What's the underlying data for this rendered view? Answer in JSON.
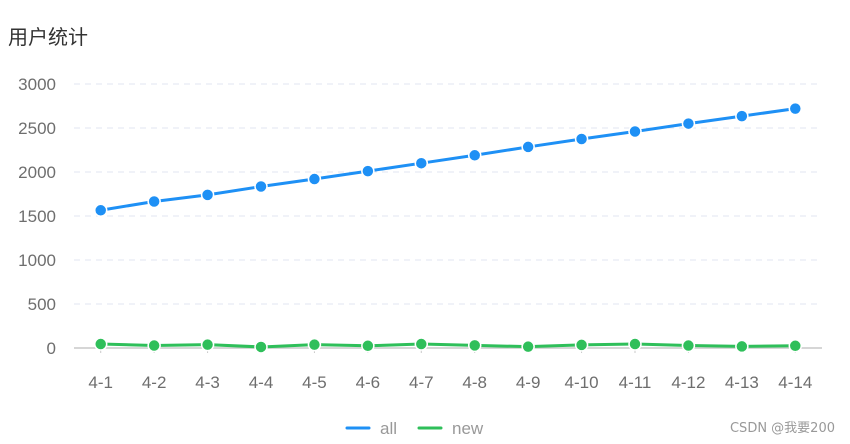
{
  "page": {
    "watermark": "CSDN @我要200"
  },
  "chart_data": {
    "type": "line",
    "title": "用户统计",
    "xlabel": "",
    "ylabel": "",
    "categories": [
      "4-1",
      "4-2",
      "4-3",
      "4-4",
      "4-5",
      "4-6",
      "4-7",
      "4-8",
      "4-9",
      "4-10",
      "4-11",
      "4-12",
      "4-13",
      "4-14"
    ],
    "ylim": [
      0,
      3000
    ],
    "yticks": [
      0,
      500,
      1000,
      1500,
      2000,
      2500,
      3000
    ],
    "grid": true,
    "legend_position": "bottom-center",
    "series": [
      {
        "name": "all",
        "color": "#1e90f5",
        "values": [
          1565,
          1665,
          1740,
          1835,
          1920,
          2010,
          2100,
          2190,
          2285,
          2375,
          2460,
          2550,
          2635,
          2720
        ]
      },
      {
        "name": "new",
        "color": "#2fbf5a",
        "values": [
          45,
          28,
          38,
          12,
          38,
          25,
          45,
          30,
          15,
          35,
          45,
          28,
          18,
          25
        ]
      }
    ]
  }
}
